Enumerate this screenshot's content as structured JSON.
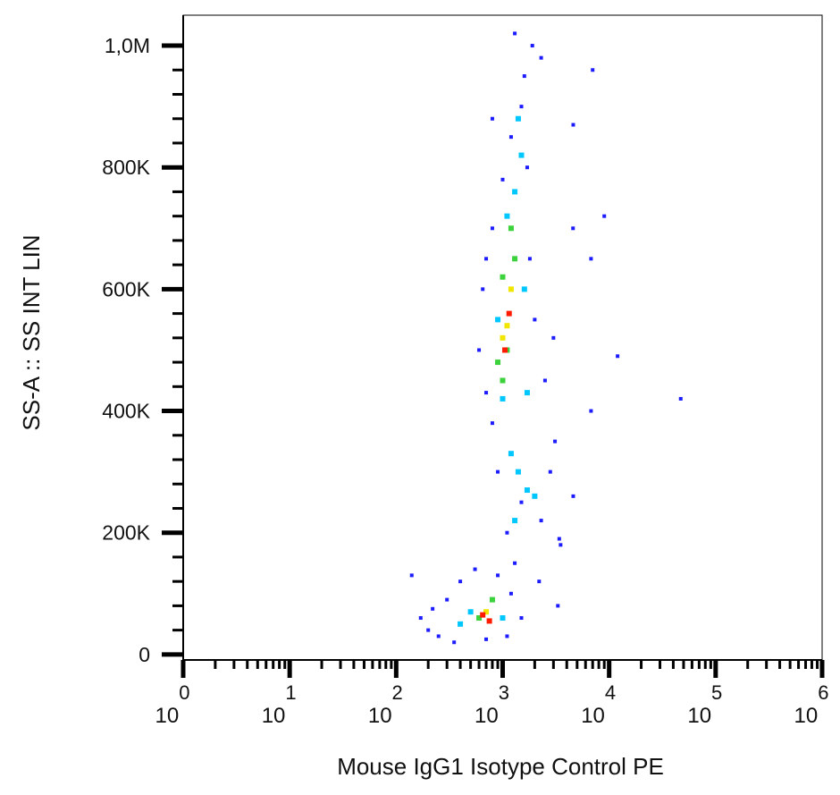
{
  "chart_data": {
    "type": "scatter",
    "x_label": "Mouse IgG1 Isotype Control PE",
    "y_label": "SS-A :: SS INT LIN",
    "xscale": "log",
    "xlim": [
      1,
      1000000
    ],
    "xticks": [
      {
        "value": 1,
        "label": "10",
        "power": "0"
      },
      {
        "value": 10,
        "label": "10",
        "power": "1"
      },
      {
        "value": 100,
        "label": "10",
        "power": "2"
      },
      {
        "value": 1000,
        "label": "10",
        "power": "3"
      },
      {
        "value": 10000,
        "label": "10",
        "power": "4"
      },
      {
        "value": 100000,
        "label": "10",
        "power": "5"
      },
      {
        "value": 1000000,
        "label": "10",
        "power": "6"
      }
    ],
    "xminorticks": [
      2,
      3,
      4,
      5,
      6,
      7,
      8,
      9,
      20,
      30,
      40,
      50,
      60,
      70,
      80,
      90,
      200,
      300,
      400,
      500,
      600,
      700,
      800,
      900,
      2000,
      3000,
      4000,
      5000,
      6000,
      7000,
      8000,
      9000,
      20000,
      30000,
      40000,
      50000,
      60000,
      70000,
      80000,
      90000,
      200000,
      300000,
      400000,
      500000,
      600000,
      700000,
      800000,
      900000
    ],
    "ylim": [
      -9000,
      1050000
    ],
    "yticks": [
      0,
      {
        "value": 200000,
        "label": "200K"
      },
      {
        "value": 400000,
        "label": "400K"
      },
      {
        "value": 600000,
        "label": "600K"
      },
      {
        "value": 800000,
        "label": "800K"
      },
      {
        "value": 1000000,
        "label": "1,0M"
      }
    ],
    "yminorticks": [
      40000,
      80000,
      120000,
      160000,
      240000,
      280000,
      320000,
      360000,
      440000,
      480000,
      520000,
      560000,
      640000,
      680000,
      720000,
      760000,
      840000,
      880000,
      920000,
      960000,
      1000000
    ],
    "series": [
      {
        "color": "#1c1cff",
        "x": [
          170,
          200,
          250,
          300,
          400,
          550,
          900,
          1200,
          1500,
          1100,
          700,
          350,
          220,
          1300,
          1100,
          1500,
          2300,
          2800,
          3100,
          900,
          800,
          700,
          2500,
          2000,
          600,
          650,
          1800,
          800,
          1000,
          1700,
          1200,
          1500,
          1600,
          1900,
          1300,
          2300,
          700,
          3000,
          4600,
          3400,
          2200,
          4580,
          6760,
          12000,
          47000,
          6760,
          4600,
          800,
          140,
          9000,
          7000,
          3500,
          3300
        ],
        "values": [
          60000,
          40000,
          30000,
          90000,
          120000,
          140000,
          130000,
          100000,
          60000,
          30000,
          25000,
          20000,
          75000,
          150000,
          200000,
          250000,
          220000,
          300000,
          350000,
          300000,
          380000,
          430000,
          450000,
          550000,
          500000,
          600000,
          650000,
          700000,
          780000,
          800000,
          850000,
          900000,
          950000,
          1000000,
          1020000,
          980000,
          650000,
          520000,
          260000,
          190000,
          120000,
          700000,
          650000,
          490000,
          420000,
          400000,
          870000,
          880000,
          130000,
          720000,
          960000,
          180000,
          80000
        ]
      },
      {
        "color": "#00c8ff",
        "x": [
          500,
          1000,
          400,
          1300,
          1700,
          1200,
          1000,
          1700,
          900,
          1600,
          1100,
          1300,
          1500,
          1400,
          1400,
          2000
        ],
        "values": [
          70000,
          60000,
          50000,
          220000,
          270000,
          330000,
          420000,
          430000,
          550000,
          600000,
          720000,
          760000,
          820000,
          880000,
          300000,
          260000
        ]
      },
      {
        "color": "#3cd23c",
        "x": [
          600,
          800,
          1000,
          1100,
          900,
          1300,
          1000,
          1200
        ],
        "values": [
          60000,
          90000,
          450000,
          500000,
          480000,
          650000,
          620000,
          700000
        ]
      },
      {
        "color": "#f0e600",
        "x": [
          700,
          1100,
          1200,
          1000
        ],
        "values": [
          70000,
          540000,
          600000,
          520000
        ]
      },
      {
        "color": "#ff1a00",
        "x": [
          650,
          750,
          1050,
          1150
        ],
        "values": [
          65000,
          55000,
          500000,
          560000
        ]
      }
    ]
  }
}
